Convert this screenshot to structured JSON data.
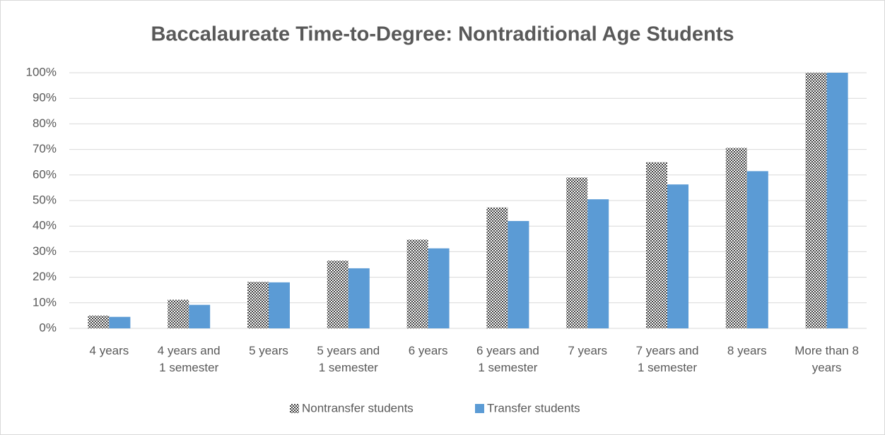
{
  "chart_data": {
    "type": "bar",
    "title": "Baccalaureate Time-to-Degree: Nontraditional Age Students",
    "categories": [
      "4 years",
      "4 years and 1 semester",
      "5 years",
      "5 years and 1 semester",
      "6 years",
      "6 years and 1 semester",
      "7 years",
      "7 years and 1 semester",
      "8 years",
      "More than 8 years"
    ],
    "series": [
      {
        "name": "Nontransfer students",
        "color": "#404040",
        "pattern": "checker",
        "values": [
          5,
          11.2,
          18.2,
          26.5,
          34.7,
          47.3,
          59,
          65,
          70.6,
          100
        ]
      },
      {
        "name": "Transfer students",
        "color": "#5b9bd5",
        "values": [
          4.5,
          9.2,
          18,
          23.5,
          31.3,
          42,
          50.5,
          56.3,
          61.5,
          100
        ]
      }
    ],
    "ylim": [
      0,
      100
    ],
    "yticks": [
      {
        "value": 0,
        "label": "0%"
      },
      {
        "value": 10,
        "label": "10%"
      },
      {
        "value": 20,
        "label": "20%"
      },
      {
        "value": 30,
        "label": "30%"
      },
      {
        "value": 40,
        "label": "40%"
      },
      {
        "value": 50,
        "label": "50%"
      },
      {
        "value": 60,
        "label": "60%"
      },
      {
        "value": 70,
        "label": "70%"
      },
      {
        "value": 80,
        "label": "80%"
      },
      {
        "value": 90,
        "label": "90%"
      },
      {
        "value": 100,
        "label": "100%"
      }
    ],
    "grid": true,
    "legend": "bottom"
  }
}
